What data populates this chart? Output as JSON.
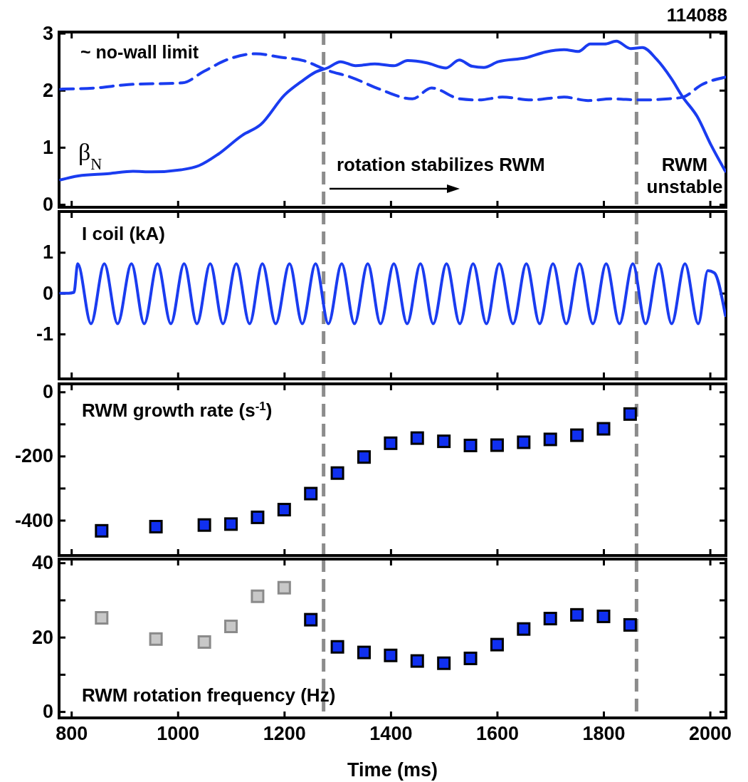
{
  "chart_data": [
    {
      "type": "line",
      "xlim": [
        777,
        2030
      ],
      "xticks": [
        800,
        1000,
        1200,
        1400,
        1600,
        1800,
        2000
      ],
      "ylim": [
        -0.05,
        3.02
      ],
      "yticks": [
        0,
        1,
        2,
        3
      ],
      "tick_labels": "y",
      "annotations": [
        "114088",
        "rotation stabilizes RWM",
        "RWM unstable"
      ],
      "ref_lines": [
        {
          "axis": "x",
          "value": 1274,
          "color": "#8c8c8c",
          "line_style": "dashed"
        },
        {
          "axis": "x",
          "value": 1862,
          "color": "#8c8c8c",
          "line_style": "dashed"
        }
      ],
      "series": [
        {
          "name": "β$_{N}$",
          "color": "#1a3cf0",
          "line_style": "solid",
          "x": [
            780,
            813,
            871,
            916,
            951,
            1009,
            1040,
            1076,
            1121,
            1156,
            1201,
            1232,
            1259,
            1281,
            1306,
            1334,
            1370,
            1406,
            1432,
            1468,
            1504,
            1529,
            1553,
            1575,
            1602,
            1655,
            1691,
            1726,
            1753,
            1775,
            1802,
            1824,
            1851,
            1873,
            1900,
            1927,
            1949,
            1976,
            2002,
            2029
          ],
          "values": [
            0.43,
            0.5,
            0.54,
            0.58,
            0.57,
            0.61,
            0.68,
            0.88,
            1.21,
            1.4,
            1.92,
            2.15,
            2.32,
            2.39,
            2.5,
            2.43,
            2.46,
            2.43,
            2.52,
            2.48,
            2.39,
            2.53,
            2.42,
            2.4,
            2.5,
            2.57,
            2.67,
            2.71,
            2.68,
            2.81,
            2.81,
            2.86,
            2.73,
            2.75,
            2.54,
            2.21,
            1.88,
            1.54,
            1.04,
            0.58
          ]
        },
        {
          "name": "~ no-wall limit",
          "color": "#1a3cf0",
          "line_style": "dashed",
          "x": [
            780,
            845,
            907,
            1009,
            1049,
            1094,
            1147,
            1192,
            1236,
            1281,
            1325,
            1379,
            1441,
            1477,
            1530,
            1566,
            1610,
            1664,
            1726,
            1771,
            1815,
            1869,
            1922,
            1949,
            1985,
            2029
          ],
          "values": [
            2.02,
            2.04,
            2.1,
            2.13,
            2.33,
            2.54,
            2.64,
            2.58,
            2.52,
            2.35,
            2.23,
            2.02,
            1.85,
            2.04,
            1.85,
            1.83,
            1.88,
            1.83,
            1.88,
            1.82,
            1.85,
            1.83,
            1.85,
            1.88,
            2.1,
            2.23
          ]
        }
      ]
    },
    {
      "type": "line",
      "xlim": [
        777,
        2030
      ],
      "xticks": [
        800,
        1000,
        1200,
        1400,
        1600,
        1800,
        2000
      ],
      "ylim": [
        -2.1,
        2.0
      ],
      "yticks": [
        -1,
        0,
        1
      ],
      "tick_labels": "y",
      "annotations": [
        "I coil (kA)"
      ],
      "ref_lines": [
        {
          "axis": "x",
          "value": 1274,
          "color": "#8c8c8c",
          "line_style": "dashed"
        },
        {
          "axis": "x",
          "value": 1862,
          "color": "#8c8c8c",
          "line_style": "dashed"
        }
      ],
      "series": [
        {
          "color": "#1a3cf0",
          "line_style": "solid",
          "x": [
            780,
            795,
            805,
            812,
            837,
            862,
            887,
            913,
            937,
            962,
            987,
            1012,
            1036,
            1061,
            1085,
            1110,
            1135,
            1159,
            1184,
            1210,
            1234,
            1259,
            1283,
            1308,
            1332,
            1357,
            1381,
            1406,
            1431,
            1456,
            1480,
            1505,
            1530,
            1555,
            1580,
            1604,
            1630,
            1655,
            1680,
            1705,
            1730,
            1755,
            1780,
            1805,
            1830,
            1855,
            1879,
            1904,
            1928,
            1953,
            1978,
            1996,
            2008,
            2029
          ],
          "values": [
            0,
            0,
            0.02,
            0.72,
            -0.75,
            0.72,
            -0.75,
            0.72,
            -0.75,
            0.72,
            -0.75,
            0.72,
            -0.75,
            0.72,
            -0.75,
            0.72,
            -0.75,
            0.72,
            -0.75,
            0.72,
            -0.75,
            0.72,
            -0.75,
            0.72,
            -0.75,
            0.72,
            -0.75,
            0.72,
            -0.75,
            0.72,
            -0.75,
            0.72,
            -0.75,
            0.72,
            -0.75,
            0.72,
            -0.75,
            0.72,
            -0.75,
            0.72,
            -0.75,
            0.72,
            -0.75,
            0.72,
            -0.75,
            0.72,
            -0.75,
            0.72,
            -0.75,
            0.72,
            -0.75,
            0.55,
            0.5,
            -0.55
          ]
        }
      ]
    },
    {
      "type": "scatter",
      "marker": "square",
      "xlim": [
        777,
        2030
      ],
      "xticks": [
        800,
        1000,
        1200,
        1400,
        1600,
        1800,
        2000
      ],
      "ylim": [
        -510,
        25
      ],
      "yticks": [
        {
          "value": 0,
          "label": "0"
        },
        {
          "value": -100,
          "label": null
        },
        -200,
        {
          "value": -300,
          "label": null
        },
        -400
      ],
      "tick_labels": "y",
      "annotations": [
        "RWM growth rate (s$^{-1}$)"
      ],
      "ref_lines": [
        {
          "axis": "x",
          "value": 1274,
          "color": "#8c8c8c",
          "line_style": "dashed"
        },
        {
          "axis": "x",
          "value": 1862,
          "color": "#8c8c8c",
          "line_style": "dashed"
        }
      ],
      "series": [
        {
          "color": "#1030f0",
          "x": [
            857,
            959,
            1050,
            1100,
            1150,
            1200,
            1250,
            1300,
            1350,
            1400,
            1450,
            1500,
            1550,
            1600,
            1650,
            1700,
            1750,
            1800,
            1850
          ],
          "values": [
            -433,
            -420,
            -415,
            -412,
            -391,
            -367,
            -317,
            -253,
            -203,
            -160,
            -144,
            -154,
            -167,
            -166,
            -157,
            -148,
            -135,
            -115,
            -69
          ]
        }
      ]
    },
    {
      "type": "scatter",
      "marker": "square",
      "xlim": [
        777,
        2030
      ],
      "xticks": [
        800,
        1000,
        1200,
        1400,
        1600,
        1800,
        2000
      ],
      "ylim": [
        -1.7,
        41
      ],
      "yticks": [
        0,
        {
          "value": 10,
          "label": null
        },
        20,
        {
          "value": 30,
          "label": null
        },
        40
      ],
      "xlabel": "Time (ms)",
      "annotations": [
        "RWM rotation frequency (Hz)"
      ],
      "ref_lines": [
        {
          "axis": "x",
          "value": 1274,
          "color": "#8c8c8c",
          "line_style": "dashed"
        },
        {
          "axis": "x",
          "value": 1862,
          "color": "#8c8c8c",
          "line_style": "dashed"
        }
      ],
      "series": [
        {
          "color": "#c8c8c8",
          "x": [
            857,
            959,
            1050,
            1100,
            1150,
            1200
          ],
          "values": [
            25.2,
            19.5,
            18.7,
            22.9,
            31,
            33.3
          ]
        },
        {
          "color": "#1030f0",
          "x": [
            1250,
            1300,
            1350,
            1400,
            1450,
            1500,
            1550,
            1600,
            1650,
            1700,
            1750,
            1800,
            1850
          ],
          "values": [
            24.7,
            17.4,
            15.9,
            15.1,
            13.6,
            13,
            14.3,
            18,
            22.2,
            25,
            26,
            25.6,
            23.3
          ]
        }
      ]
    }
  ]
}
